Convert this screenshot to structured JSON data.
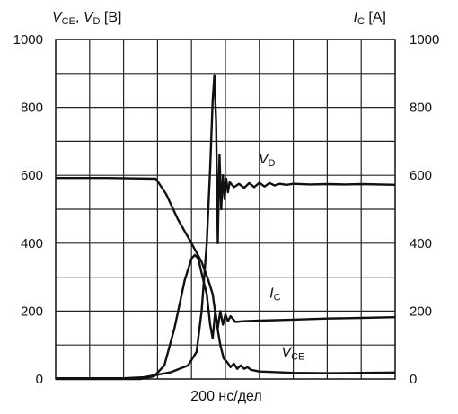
{
  "chart_data": {
    "type": "line",
    "left_axis": {
      "label_parts": [
        {
          "t": "V",
          "italic": true
        },
        {
          "t": "CE",
          "sub": true
        },
        {
          "t": ", "
        },
        {
          "t": "V",
          "italic": true
        },
        {
          "t": "D",
          "sub": true
        },
        {
          "t": " [В]"
        }
      ],
      "ticks": [
        "0",
        "200",
        "400",
        "600",
        "800",
        "1000"
      ],
      "ylim": [
        0,
        1000
      ]
    },
    "right_axis": {
      "label_parts": [
        {
          "t": "I",
          "italic": true
        },
        {
          "t": "C",
          "sub": true
        },
        {
          "t": " [А]"
        }
      ],
      "ticks": [
        "0",
        "200",
        "400",
        "600",
        "800",
        "1000"
      ],
      "ylim": [
        0,
        1000
      ]
    },
    "x_axis": {
      "label": "200 нс/дел",
      "divisions": 10,
      "xlim": [
        0,
        2000
      ],
      "unit_per_division": 200
    },
    "grid": true,
    "series": [
      {
        "name": "VD",
        "label_parts": [
          {
            "t": "V",
            "italic": true
          },
          {
            "t": "D",
            "sub": true
          }
        ],
        "points": [
          [
            0,
            2
          ],
          [
            400,
            2
          ],
          [
            520,
            5
          ],
          [
            680,
            20
          ],
          [
            780,
            40
          ],
          [
            830,
            80
          ],
          [
            860,
            200
          ],
          [
            890,
            400
          ],
          [
            910,
            620
          ],
          [
            925,
            820
          ],
          [
            935,
            895
          ],
          [
            945,
            760
          ],
          [
            955,
            400
          ],
          [
            965,
            660
          ],
          [
            975,
            500
          ],
          [
            985,
            600
          ],
          [
            995,
            530
          ],
          [
            1005,
            590
          ],
          [
            1015,
            550
          ],
          [
            1025,
            580
          ],
          [
            1050,
            565
          ],
          [
            1080,
            575
          ],
          [
            1110,
            563
          ],
          [
            1140,
            577
          ],
          [
            1170,
            565
          ],
          [
            1200,
            578
          ],
          [
            1230,
            567
          ],
          [
            1260,
            577
          ],
          [
            1290,
            570
          ],
          [
            1320,
            575
          ],
          [
            1360,
            572
          ],
          [
            1400,
            575
          ],
          [
            1500,
            573
          ],
          [
            1600,
            574
          ],
          [
            1700,
            573
          ],
          [
            1800,
            574
          ],
          [
            2000,
            572
          ]
        ]
      },
      {
        "name": "IC",
        "label_parts": [
          {
            "t": "I",
            "italic": true
          },
          {
            "t": "C",
            "sub": true
          }
        ],
        "points": [
          [
            0,
            0
          ],
          [
            500,
            0
          ],
          [
            580,
            8
          ],
          [
            640,
            40
          ],
          [
            700,
            150
          ],
          [
            760,
            290
          ],
          [
            800,
            355
          ],
          [
            820,
            365
          ],
          [
            840,
            355
          ],
          [
            865,
            300
          ],
          [
            890,
            250
          ],
          [
            910,
            160
          ],
          [
            925,
            120
          ],
          [
            940,
            200
          ],
          [
            955,
            150
          ],
          [
            970,
            200
          ],
          [
            985,
            160
          ],
          [
            1000,
            190
          ],
          [
            1015,
            170
          ],
          [
            1030,
            185
          ],
          [
            1060,
            168
          ],
          [
            1100,
            170
          ],
          [
            1200,
            172
          ],
          [
            1400,
            175
          ],
          [
            1600,
            178
          ],
          [
            1800,
            180
          ],
          [
            2000,
            182
          ]
        ]
      },
      {
        "name": "VCE",
        "label_parts": [
          {
            "t": "V",
            "italic": true
          },
          {
            "t": "CE",
            "sub": true
          }
        ],
        "points": [
          [
            0,
            592
          ],
          [
            300,
            592
          ],
          [
            590,
            590
          ],
          [
            650,
            545
          ],
          [
            720,
            470
          ],
          [
            800,
            400
          ],
          [
            860,
            345
          ],
          [
            900,
            290
          ],
          [
            925,
            250
          ],
          [
            950,
            160
          ],
          [
            970,
            100
          ],
          [
            990,
            60
          ],
          [
            1010,
            50
          ],
          [
            1030,
            35
          ],
          [
            1050,
            45
          ],
          [
            1070,
            30
          ],
          [
            1090,
            40
          ],
          [
            1110,
            30
          ],
          [
            1130,
            35
          ],
          [
            1150,
            27
          ],
          [
            1200,
            22
          ],
          [
            1300,
            20
          ],
          [
            1400,
            18
          ],
          [
            1600,
            17
          ],
          [
            1800,
            18
          ],
          [
            2000,
            19
          ]
        ]
      }
    ],
    "annotations": [
      {
        "series": "VD",
        "at": [
          1195,
          635
        ]
      },
      {
        "series": "IC",
        "at": [
          1260,
          240
        ]
      },
      {
        "series": "VCE",
        "at": [
          1330,
          65
        ]
      }
    ]
  }
}
